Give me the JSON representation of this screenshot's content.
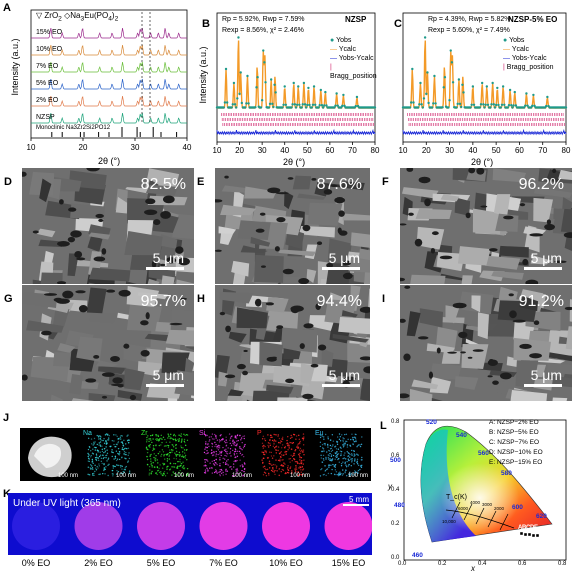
{
  "panels": {
    "a": {
      "letter": "A",
      "legend_zro2": "ZrO",
      "legend_zro2_sub": "2",
      "legend_na3eu": "Na",
      "legend_na3eu_rest": "Eu(PO",
      "legend_na3eu_sub": "4",
      "legend_na3eu_end": ")",
      "legend_na3eu_sub2": "2",
      "curve_labels": [
        "15% EO",
        "10% EO",
        "7% EO",
        "5% EO",
        "2% EO",
        "NZSP"
      ],
      "reference_label": "Monoclinic Na3Zr2Si2PO12",
      "ylabel": "Intensity (a.u.)",
      "xlabel": "2θ (°)",
      "xticks": [
        "10",
        "20",
        "30",
        "40"
      ]
    },
    "b": {
      "letter": "B",
      "tag": "NZSP",
      "stats_line1": "Rp = 5.92%, Rwp = 7.59%",
      "stats_line2": "Rexp = 8.56%, χ² = 2.46%",
      "legend": [
        "Yobs",
        "Ycalc",
        "Yobs-Ycalc",
        "Bragg_position"
      ],
      "ylabel": "Intensity (a.u.)",
      "xlabel": "2θ (°)",
      "xticks": [
        "10",
        "20",
        "30",
        "40",
        "50",
        "60",
        "70",
        "80"
      ]
    },
    "c": {
      "letter": "C",
      "tag": "NZSP-5% EO",
      "stats_line1": "Rp = 4.39%, Rwp = 5.82%",
      "stats_line2": "Rexp = 5.60%, χ² = 7.49%",
      "legend": [
        "Yobs",
        "Ycalc",
        "Yobs-Ycalc",
        "Bragg_position"
      ],
      "xlabel": "2θ (°)",
      "xticks": [
        "10",
        "20",
        "30",
        "40",
        "50",
        "60",
        "70",
        "80"
      ]
    }
  },
  "sem": [
    {
      "letter": "D",
      "density": "82.5%",
      "scale": "5 μm"
    },
    {
      "letter": "E",
      "density": "87.6%",
      "scale": "5 μm"
    },
    {
      "letter": "F",
      "density": "96.2%",
      "scale": "5 μm"
    },
    {
      "letter": "G",
      "density": "95.7%",
      "scale": "5 μm"
    },
    {
      "letter": "H",
      "density": "94.4%",
      "scale": "5 μm"
    },
    {
      "letter": "I",
      "density": "91.2%",
      "scale": "5 μm"
    }
  ],
  "eds": {
    "letter": "J",
    "maps": [
      {
        "label": "",
        "color": "#ffffff",
        "scale": "100 nm"
      },
      {
        "label": "Na",
        "color": "#35d0d8",
        "scale": "100 nm"
      },
      {
        "label": "Zr",
        "color": "#2ee62e",
        "scale": "100 nm"
      },
      {
        "label": "Si",
        "color": "#e83ce8",
        "scale": "100 nm"
      },
      {
        "label": "P",
        "color": "#ff2a2a",
        "scale": "100 nm"
      },
      {
        "label": "Eu",
        "color": "#38b8e8",
        "scale": "100 nm"
      }
    ]
  },
  "uv": {
    "letter": "K",
    "title": "Under UV light (365 nm)",
    "scale": "5 mm",
    "samples": [
      {
        "label": "0% EO",
        "color": "#2a1ee0"
      },
      {
        "label": "2% EO",
        "color": "#a03ce8"
      },
      {
        "label": "5% EO",
        "color": "#c43ce8"
      },
      {
        "label": "7% EO",
        "color": "#e23ce6"
      },
      {
        "label": "10% EO",
        "color": "#ee38e2"
      },
      {
        "label": "15% EO",
        "color": "#f038e0"
      }
    ]
  },
  "cie": {
    "letter": "L",
    "legend": [
      "A: NZSP−2% EO",
      "B: NZSP−5% EO",
      "C: NZSP−7% EO",
      "D: NZSP−10% EO",
      "E: NZSP−15% EO"
    ],
    "wavelength_labels": [
      "520",
      "540",
      "560",
      "580",
      "500",
      "600",
      "620",
      "480",
      "460"
    ],
    "cct_label": "T_c(K)",
    "cct_values": [
      "10,000",
      "6000",
      "4000",
      "3000",
      "2000"
    ],
    "points": [
      "A",
      "B",
      "C",
      "D",
      "E"
    ],
    "xlabel": "x",
    "ylabel": "y",
    "xticks": [
      "0.0",
      "0.2",
      "0.4",
      "0.6",
      "0.8"
    ],
    "yticks": [
      "0.0",
      "0.2",
      "0.4",
      "0.6",
      "0.8"
    ]
  }
}
